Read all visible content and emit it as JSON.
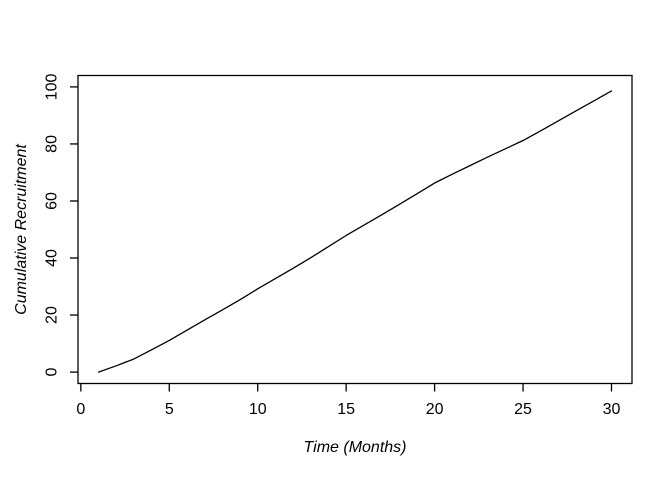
{
  "chart_data": {
    "type": "line",
    "title": "",
    "xlabel": "Time (Months)",
    "ylabel": "Cumulative Recruitment",
    "x": [
      1,
      2,
      3,
      4,
      5,
      6,
      7,
      8,
      9,
      10,
      11,
      12,
      13,
      14,
      15,
      16,
      17,
      18,
      19,
      20,
      21,
      22,
      23,
      24,
      25,
      26,
      27,
      28,
      29,
      30
    ],
    "values": [
      0,
      2.2,
      4.6,
      7.8,
      11.1,
      14.7,
      18.3,
      21.8,
      25.4,
      29.2,
      32.8,
      36.4,
      40.1,
      44,
      47.9,
      51.5,
      55.1,
      58.8,
      62.5,
      66.3,
      69.4,
      72.4,
      75.4,
      78.3,
      81.2,
      84.6,
      88.1,
      91.6,
      95.1,
      98.6
    ],
    "x_ticks": [
      0,
      5,
      10,
      15,
      20,
      25,
      30
    ],
    "y_ticks": [
      0,
      20,
      40,
      60,
      80,
      100
    ],
    "xlim": [
      1,
      30
    ],
    "ylim": [
      0,
      100
    ],
    "x_range": [
      -0.16,
      31.16
    ],
    "y_range": [
      -4,
      104
    ],
    "grid": false,
    "legend": "none",
    "line_color": "#000000",
    "axis_color": "#000000",
    "text_color": "#000000",
    "background": "#ffffff"
  }
}
